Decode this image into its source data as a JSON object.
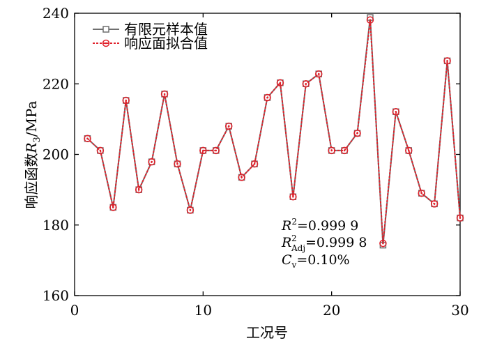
{
  "chart_data": {
    "type": "line",
    "title": "",
    "xlabel": "工况号",
    "ylabel_parts": {
      "pre": "响应函数",
      "var": "R",
      "sub": "3",
      "post": "/MPa"
    },
    "xlim": [
      0,
      30
    ],
    "ylim": [
      160,
      240
    ],
    "xticks": [
      0,
      10,
      20,
      30
    ],
    "yticks": [
      160,
      180,
      200,
      220,
      240
    ],
    "grid": false,
    "legend_position": "top-left",
    "x": [
      1,
      2,
      3,
      4,
      5,
      6,
      7,
      8,
      9,
      10,
      11,
      12,
      13,
      14,
      15,
      16,
      17,
      18,
      19,
      20,
      21,
      22,
      23,
      24,
      25,
      26,
      27,
      28,
      29,
      30
    ],
    "series": [
      {
        "name": "有限元样本值",
        "color": "#6f6f6f",
        "marker": "square",
        "values": [
          204.5,
          201.1,
          185.0,
          215.3,
          190.0,
          197.9,
          217.1,
          197.3,
          184.2,
          201.1,
          201.1,
          208.0,
          193.5,
          197.3,
          216.1,
          220.3,
          188.0,
          220.0,
          222.8,
          201.1,
          201.1,
          206.0,
          238.8,
          174.3,
          212.1,
          201.1,
          189.0,
          186.0,
          226.5,
          182.0
        ]
      },
      {
        "name": "响应面拟合值",
        "color": "#e0202a",
        "marker": "circle",
        "values": [
          204.5,
          201.1,
          185.0,
          215.3,
          190.0,
          197.9,
          217.1,
          197.3,
          184.2,
          201.1,
          201.1,
          208.0,
          193.5,
          197.3,
          216.1,
          220.3,
          188.0,
          220.0,
          222.8,
          201.1,
          201.1,
          206.0,
          238.1,
          174.8,
          212.1,
          201.1,
          189.0,
          186.0,
          226.5,
          182.0
        ]
      }
    ],
    "stats": {
      "r2_symbol": "R",
      "r2_sup": "2",
      "r2_value": "=0.999 9",
      "radj_symbol": "R",
      "radj_sup": "2",
      "radj_sub": "Adj",
      "radj_value": "=0.999 8",
      "cv_symbol": "C",
      "cv_sub": "v",
      "cv_value": "=0.10%"
    }
  }
}
